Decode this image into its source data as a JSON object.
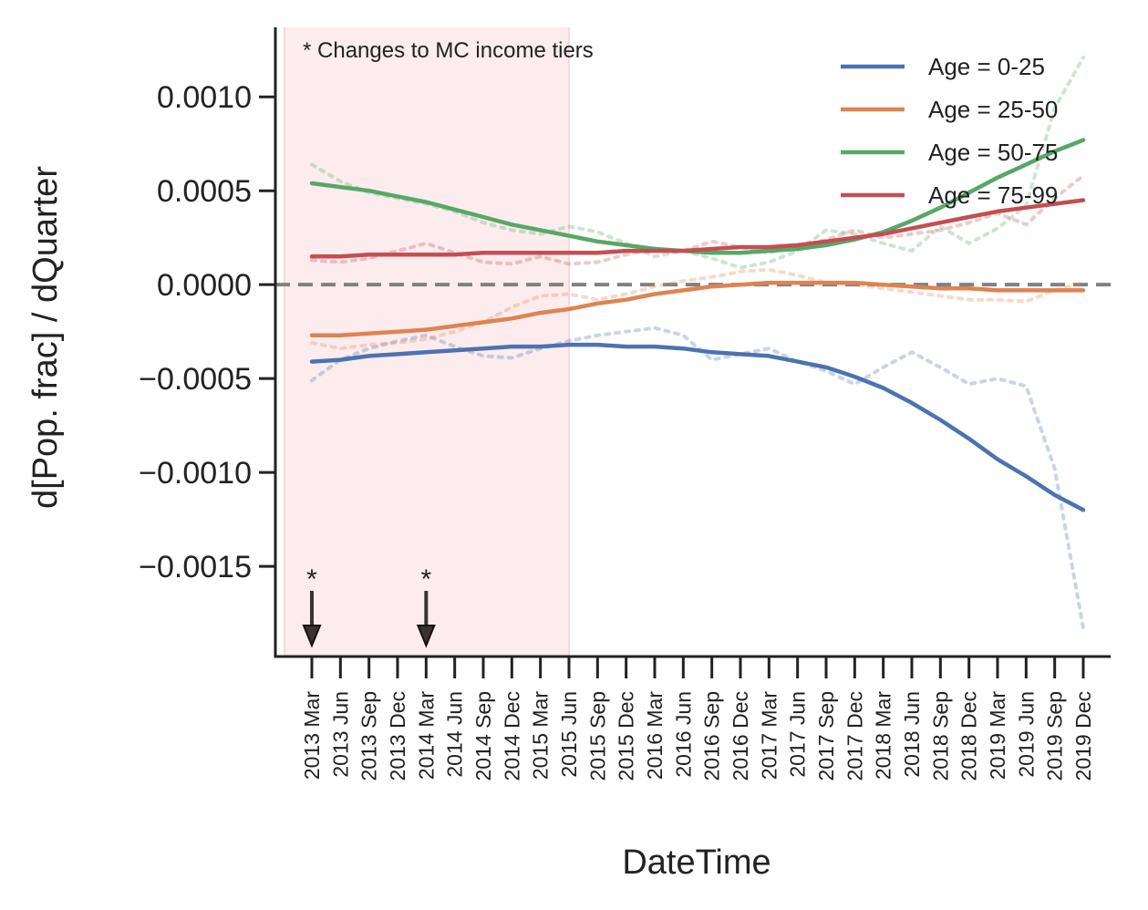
{
  "chart_data": {
    "type": "line",
    "xlabel": "DateTime",
    "ylabel": "d[Pop. frac] / dQuarter",
    "ylim": [
      -0.00198,
      0.00137
    ],
    "yticks": [
      "0.0010",
      "0.0005",
      "0.0000",
      "−0.0005",
      "−0.0010",
      "−0.0015"
    ],
    "ytick_values": [
      0.001,
      0.0005,
      0.0,
      -0.0005,
      -0.001,
      -0.0015
    ],
    "categories": [
      "2013 Mar",
      "2013 Jun",
      "2013 Sep",
      "2013 Dec",
      "2014 Mar",
      "2014 Jun",
      "2014 Sep",
      "2014 Dec",
      "2015 Mar",
      "2015 Jun",
      "2015 Sep",
      "2015 Dec",
      "2016 Mar",
      "2016 Jun",
      "2016 Sep",
      "2016 Dec",
      "2017 Mar",
      "2017 Jun",
      "2017 Sep",
      "2017 Dec",
      "2018 Mar",
      "2018 Jun",
      "2018 Sep",
      "2018 Dec",
      "2019 Mar",
      "2019 Jun",
      "2019 Sep",
      "2019 Dec"
    ],
    "annotation": "* Changes to MC income tiers",
    "marker_symbol": "*",
    "event_markers": [
      "2013 Mar",
      "2014 Mar"
    ],
    "shaded_region": {
      "from": "2013 Mar",
      "to": "2015 Jun",
      "color": "#fdecee"
    },
    "zero_line": {
      "y": 0.0,
      "style": "dashed",
      "color": "#808080"
    },
    "legend_position": "top-right",
    "grid": false,
    "series": [
      {
        "name": "Age = 0-25",
        "color": "#4c72b0",
        "values": [
          -0.00041,
          -0.0004,
          -0.00038,
          -0.00037,
          -0.00036,
          -0.00035,
          -0.00034,
          -0.00033,
          -0.00033,
          -0.00032,
          -0.00032,
          -0.00033,
          -0.00033,
          -0.00034,
          -0.00036,
          -0.00037,
          -0.00038,
          -0.00041,
          -0.00044,
          -0.00049,
          -0.00055,
          -0.00063,
          -0.00072,
          -0.00082,
          -0.00093,
          -0.00102,
          -0.00112,
          -0.0012
        ],
        "raw": [
          -0.00051,
          -0.0004,
          -0.00034,
          -0.0003,
          -0.00027,
          -0.00033,
          -0.00038,
          -0.00039,
          -0.00034,
          -0.0003,
          -0.00027,
          -0.00025,
          -0.00023,
          -0.00027,
          -0.0004,
          -0.00037,
          -0.00034,
          -0.00041,
          -0.00046,
          -0.00053,
          -0.00044,
          -0.00036,
          -0.00044,
          -0.00053,
          -0.0005,
          -0.00054,
          -0.00098,
          -0.00183
        ]
      },
      {
        "name": "Age = 25-50",
        "color": "#dd8452",
        "values": [
          -0.00027,
          -0.00027,
          -0.00026,
          -0.00025,
          -0.00024,
          -0.00022,
          -0.0002,
          -0.00018,
          -0.00015,
          -0.00013,
          -0.0001,
          -8e-05,
          -5e-05,
          -3e-05,
          -1e-05,
          0.0,
          1e-05,
          1e-05,
          1e-05,
          1e-05,
          0.0,
          -1e-05,
          -2e-05,
          -2e-05,
          -3e-05,
          -3e-05,
          -3e-05,
          -3e-05
        ],
        "raw": [
          -0.00031,
          -0.00034,
          -0.00032,
          -0.00031,
          -0.00029,
          -0.00025,
          -0.0002,
          -0.00012,
          -6e-05,
          -5e-05,
          -8e-05,
          -5e-05,
          -1e-05,
          2e-05,
          4e-05,
          7e-05,
          8e-05,
          5e-05,
          1e-05,
          0.0,
          -2e-05,
          -4e-05,
          -6e-05,
          -8e-05,
          -8e-05,
          -9e-05,
          -3e-05,
          1e-05
        ]
      },
      {
        "name": "Age = 50-75",
        "color": "#55a868",
        "values": [
          0.00054,
          0.00052,
          0.0005,
          0.00047,
          0.00044,
          0.0004,
          0.00036,
          0.00032,
          0.00029,
          0.00026,
          0.00023,
          0.00021,
          0.00019,
          0.00018,
          0.00017,
          0.00017,
          0.00018,
          0.00019,
          0.00021,
          0.00024,
          0.00028,
          0.00034,
          0.00041,
          0.00049,
          0.00057,
          0.00064,
          0.00071,
          0.00077
        ],
        "raw": [
          0.00064,
          0.00055,
          0.00049,
          0.00046,
          0.00043,
          0.00039,
          0.00033,
          0.00029,
          0.00027,
          0.00031,
          0.00028,
          0.00022,
          0.00015,
          0.00018,
          0.00014,
          9e-05,
          0.00012,
          0.00018,
          0.00029,
          0.00027,
          0.00022,
          0.00018,
          0.00031,
          0.00022,
          0.0003,
          0.00042,
          0.00094,
          0.00121
        ]
      },
      {
        "name": "Age = 75-99",
        "color": "#c44e52",
        "values": [
          0.00015,
          0.00015,
          0.00016,
          0.00016,
          0.00016,
          0.00016,
          0.00017,
          0.00017,
          0.00017,
          0.00017,
          0.00017,
          0.00018,
          0.00018,
          0.00018,
          0.00019,
          0.0002,
          0.0002,
          0.00021,
          0.00023,
          0.00025,
          0.00027,
          0.0003,
          0.00033,
          0.00036,
          0.00039,
          0.00041,
          0.00043,
          0.00045
        ],
        "raw": [
          0.00013,
          0.00012,
          0.00014,
          0.00018,
          0.00022,
          0.00017,
          0.00012,
          0.00011,
          0.00015,
          0.00011,
          0.00012,
          0.00016,
          0.00019,
          0.00018,
          0.00023,
          0.0002,
          0.00017,
          0.0002,
          0.00024,
          0.00029,
          0.00025,
          0.00027,
          0.00029,
          0.00033,
          0.00038,
          0.00032,
          0.00046,
          0.00058
        ]
      }
    ]
  }
}
